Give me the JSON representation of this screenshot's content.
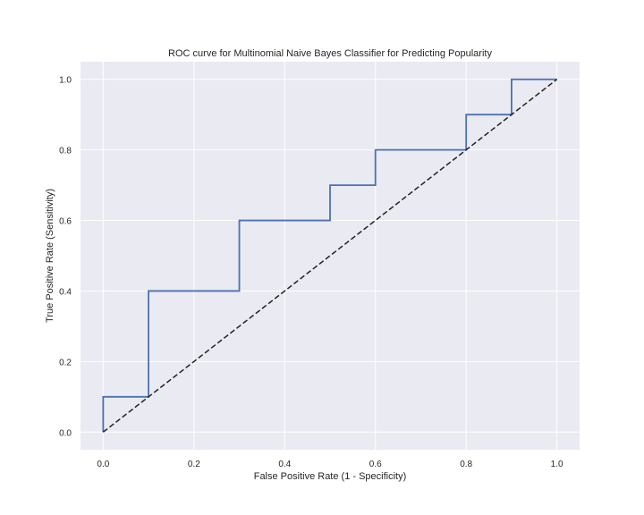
{
  "chart_data": {
    "type": "line",
    "title": "ROC curve for Multinomial Naive Bayes Classifier for Predicting Popularity",
    "xlabel": "False Positive Rate (1 - Specificity)",
    "ylabel": "True Positive Rate (Sensitivity)",
    "xlim": [
      -0.05,
      1.05
    ],
    "ylim": [
      -0.05,
      1.05
    ],
    "xticks": [
      0.0,
      0.2,
      0.4,
      0.6,
      0.8,
      1.0
    ],
    "yticks": [
      0.0,
      0.2,
      0.4,
      0.6,
      0.8,
      1.0
    ],
    "xtick_labels": [
      "0.0",
      "0.2",
      "0.4",
      "0.6",
      "0.8",
      "1.0"
    ],
    "ytick_labels": [
      "0.0",
      "0.2",
      "0.4",
      "0.6",
      "0.8",
      "1.0"
    ],
    "grid": true,
    "series": [
      {
        "style": "solid",
        "color": "#4c72b0",
        "points": [
          [
            0.0,
            0.0
          ],
          [
            0.0,
            0.1
          ],
          [
            0.1,
            0.1
          ],
          [
            0.1,
            0.4
          ],
          [
            0.3,
            0.4
          ],
          [
            0.3,
            0.6
          ],
          [
            0.5,
            0.6
          ],
          [
            0.5,
            0.7
          ],
          [
            0.6,
            0.7
          ],
          [
            0.6,
            0.8
          ],
          [
            0.8,
            0.8
          ],
          [
            0.8,
            0.9
          ],
          [
            0.9,
            0.9
          ],
          [
            0.9,
            1.0
          ],
          [
            1.0,
            1.0
          ]
        ]
      },
      {
        "style": "dashed",
        "color": "#222222",
        "points": [
          [
            0.0,
            0.0
          ],
          [
            1.0,
            1.0
          ]
        ]
      }
    ],
    "background_color": "#eaeaf2",
    "grid_color": "#ffffff"
  }
}
